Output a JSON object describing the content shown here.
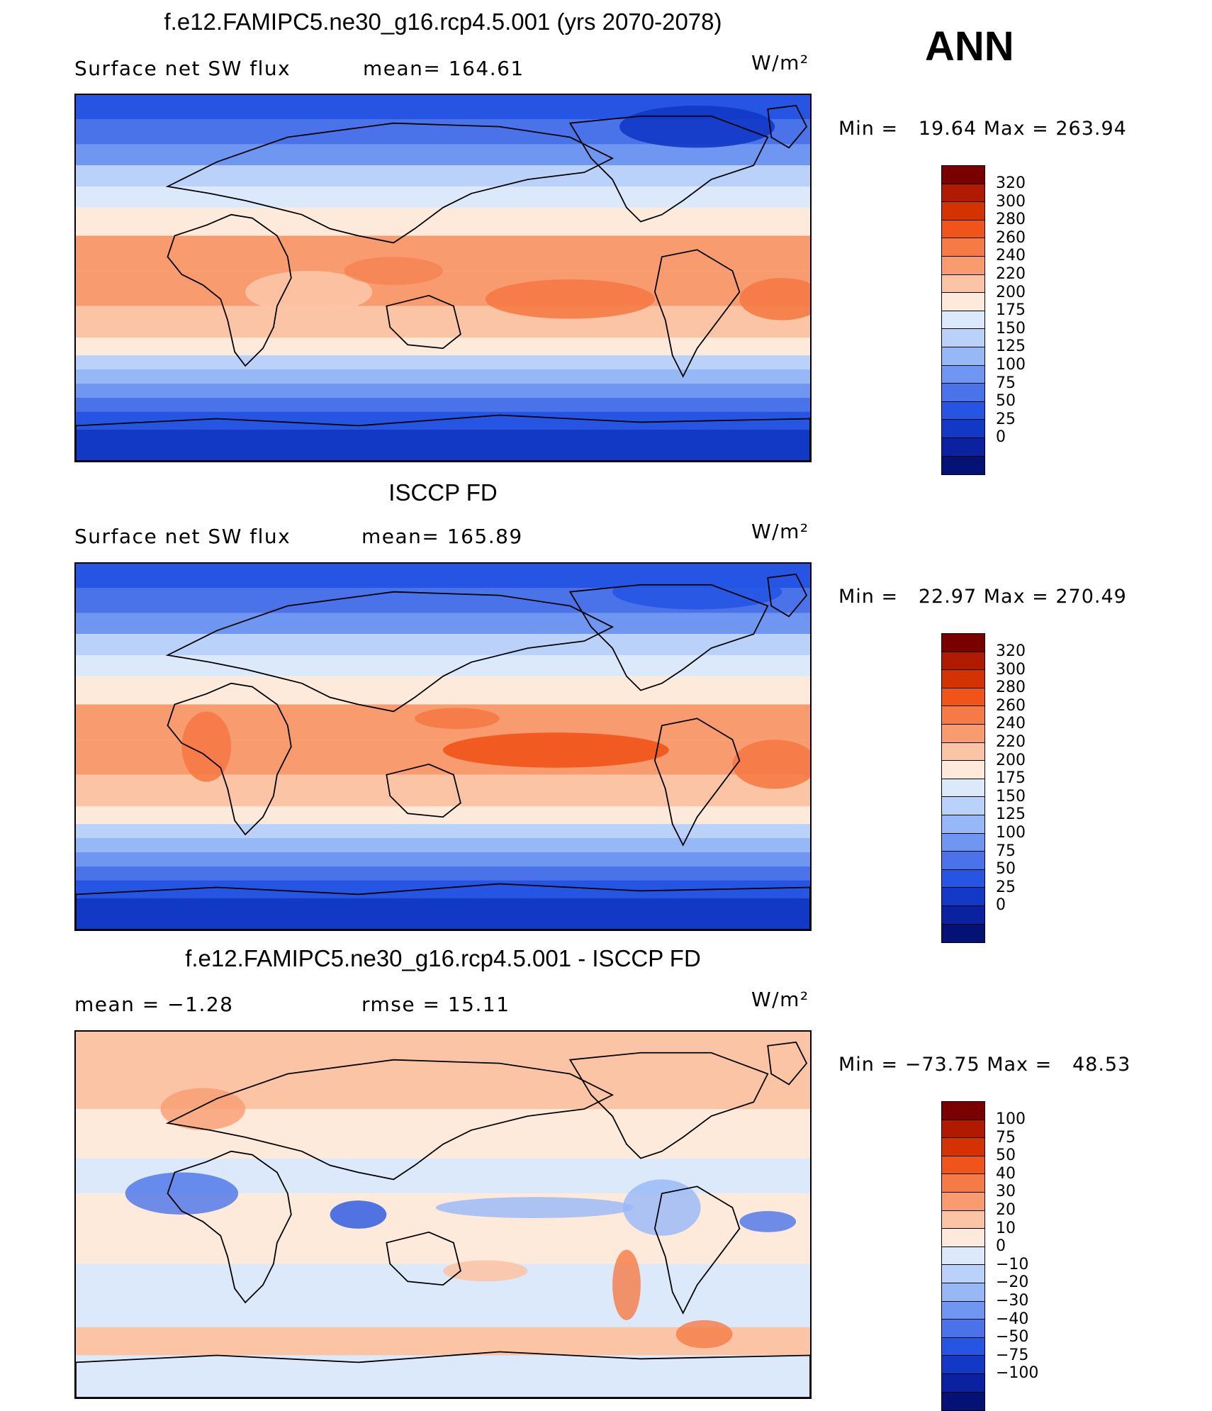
{
  "season": "ANN",
  "units": "W/m²",
  "panels": [
    {
      "title": "f.e12.FAMIPC5.ne30_g16.rcp4.5.001 (yrs 2070-2078)",
      "left_label": "Surface net SW flux",
      "stat_label": "mean= 164.61",
      "minmax": "Min =   19.64 Max = 263.94",
      "map_description": "Model surface net shortwave flux (annual mean)",
      "colorbar": {
        "colors": [
          "#7a0000",
          "#b01a00",
          "#d43200",
          "#f0541a",
          "#f57a45",
          "#f89c70",
          "#fbc5a5",
          "#fdeadb",
          "#dbe9fb",
          "#bad2fa",
          "#97b8f7",
          "#6f97f1",
          "#4a73ea",
          "#2655e3",
          "#1238c6",
          "#0a22a0",
          "#041276"
        ],
        "labels": [
          "320",
          "300",
          "280",
          "260",
          "240",
          "220",
          "200",
          "175",
          "150",
          "125",
          "100",
          "75",
          "50",
          "25",
          "0"
        ]
      }
    },
    {
      "title": "ISCCP FD",
      "left_label": "Surface net SW flux",
      "stat_label": "mean= 165.89",
      "minmax": "Min =   22.97 Max = 270.49",
      "map_description": "Observed ISCCP FD surface net shortwave flux (annual mean)",
      "colorbar": {
        "colors": [
          "#7a0000",
          "#b01a00",
          "#d43200",
          "#f0541a",
          "#f57a45",
          "#f89c70",
          "#fbc5a5",
          "#fdeadb",
          "#dbe9fb",
          "#bad2fa",
          "#97b8f7",
          "#6f97f1",
          "#4a73ea",
          "#2655e3",
          "#1238c6",
          "#0a22a0",
          "#041276"
        ],
        "labels": [
          "320",
          "300",
          "280",
          "260",
          "240",
          "220",
          "200",
          "175",
          "150",
          "125",
          "100",
          "75",
          "50",
          "25",
          "0"
        ]
      }
    },
    {
      "title": "f.e12.FAMIPC5.ne30_g16.rcp4.5.001 - ISCCP FD",
      "left_label": "mean =   −1.28",
      "stat_label": "rmse =   15.11",
      "minmax": "Min = −73.75 Max =   48.53",
      "map_description": "Difference: model minus ISCCP FD",
      "colorbar": {
        "colors": [
          "#7a0000",
          "#b01a00",
          "#d43200",
          "#f0541a",
          "#f57a45",
          "#f89c70",
          "#fbc5a5",
          "#fdeadb",
          "#dbe9fb",
          "#bad2fa",
          "#97b8f7",
          "#6f97f1",
          "#4a73ea",
          "#2655e3",
          "#1238c6",
          "#0a22a0",
          "#041276"
        ],
        "labels": [
          "100",
          "75",
          "50",
          "40",
          "30",
          "20",
          "10",
          "0",
          "−10",
          "−20",
          "−30",
          "−40",
          "−50",
          "−75",
          "−100"
        ]
      }
    }
  ]
}
